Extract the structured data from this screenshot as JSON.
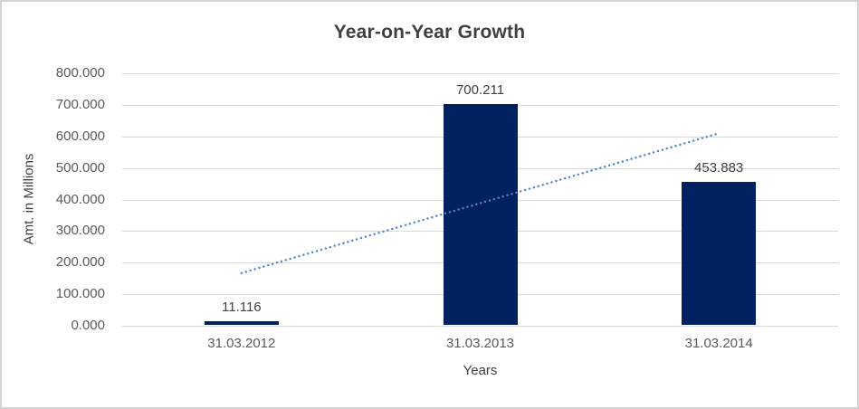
{
  "chart": {
    "title": "Year-on-Year Growth",
    "y_axis_title": "Amt. in Millions",
    "x_axis_title": "Years"
  },
  "chart_data": {
    "type": "bar",
    "title": "Year-on-Year Growth",
    "xlabel": "Years",
    "ylabel": "Amt. in Millions",
    "categories": [
      "31.03.2012",
      "31.03.2013",
      "31.03.2014"
    ],
    "values": [
      11.116,
      700.211,
      453.883
    ],
    "data_labels": [
      "11.116",
      "700.211",
      "453.883"
    ],
    "ylim": [
      0,
      800
    ],
    "ytick_step": 100,
    "ytick_labels": [
      "0.000",
      "100.000",
      "200.000",
      "300.000",
      "400.000",
      "500.000",
      "600.000",
      "700.000",
      "800.000"
    ],
    "grid": true,
    "legend": "none",
    "colors": {
      "bar": "#002060",
      "trendline": "#4E86C8",
      "gridline": "#D9D9D9",
      "title_text": "#404040",
      "tick_text": "#595959",
      "border": "#D2D2D2"
    },
    "trendline": {
      "type": "linear",
      "style": "dotted",
      "endpoint_values": [
        167.0,
        609.8
      ]
    }
  }
}
